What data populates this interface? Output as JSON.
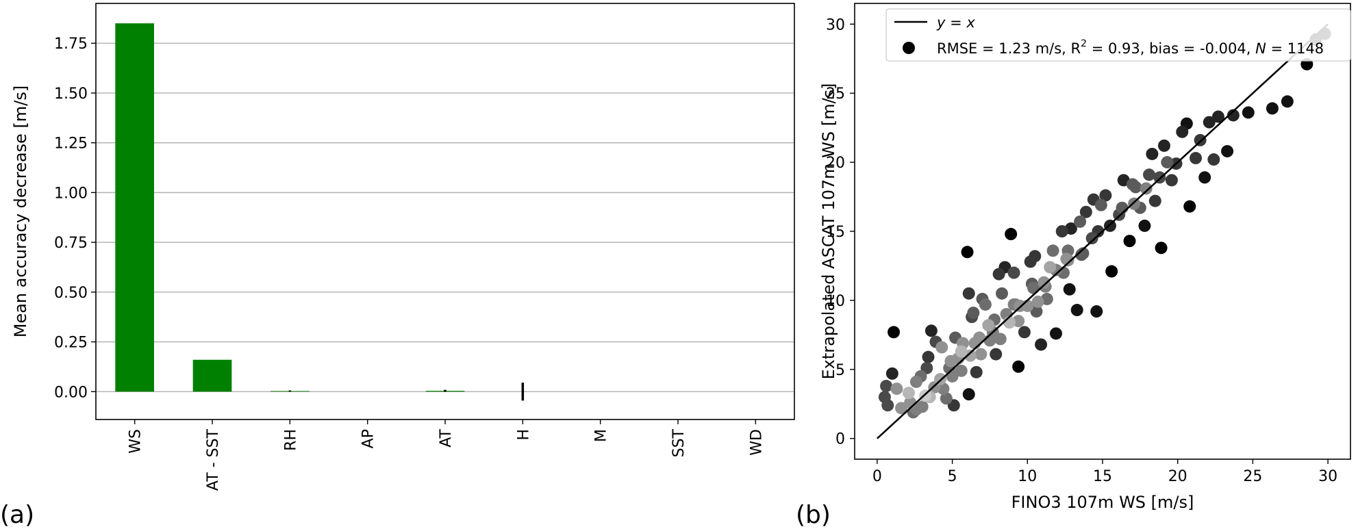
{
  "panels": {
    "a": {
      "label": "(a)"
    },
    "b": {
      "label": "(b)"
    }
  },
  "colors": {
    "bar": "#008000",
    "axis": "#000000",
    "grid": "#b0b0b0",
    "identity_line": "#000000"
  },
  "chart_data": [
    {
      "id": "importance",
      "type": "bar",
      "title": "",
      "xlabel": "",
      "ylabel": "Mean accuracy decrease [m/s]",
      "categories": [
        "WS",
        "AT - SST",
        "RH",
        "AP",
        "AT",
        "H",
        "M",
        "SST",
        "WD"
      ],
      "values": [
        1.85,
        0.16,
        0.003,
        0.0,
        0.004,
        0.0,
        0.0,
        0.0,
        0.0
      ],
      "error": [
        0.0,
        0.0,
        0.003,
        0.0,
        0.005,
        0.045,
        0.0,
        0.0,
        0.0
      ],
      "ylim": [
        -0.14,
        1.95
      ],
      "yticks": [
        "0.00",
        "0.25",
        "0.50",
        "0.75",
        "1.00",
        "1.25",
        "1.50",
        "1.75"
      ],
      "ytick_values": [
        0,
        0.25,
        0.5,
        0.75,
        1.0,
        1.25,
        1.5,
        1.75
      ],
      "grid": "horizontal",
      "xtick_rotation": "vertical"
    },
    {
      "id": "validation",
      "type": "scatter",
      "title": "",
      "xlabel": "FINO3 107m WS [m/s]",
      "ylabel": "Extrapolated ASCAT 107m WS [m/s]",
      "xlim": [
        -1.5,
        31.5
      ],
      "ylim": [
        -1.5,
        31.5
      ],
      "xticks": [
        "0",
        "5",
        "10",
        "15",
        "20",
        "25",
        "30"
      ],
      "xtick_values": [
        0,
        5,
        10,
        15,
        20,
        25,
        30
      ],
      "yticks": [
        "0",
        "5",
        "10",
        "15",
        "20",
        "25",
        "30"
      ],
      "ytick_values": [
        0,
        5,
        10,
        15,
        20,
        25,
        30
      ],
      "grid": false,
      "legend_position": "upper-left",
      "identity_line": {
        "label": "y = x",
        "from": [
          0,
          0
        ],
        "to": [
          30,
          30
        ]
      },
      "scatter_label": {
        "prefix": "RMSE = 1.23 m/s, R",
        "sup": "2",
        "mid": " = 0.93, bias = -0.004, ",
        "n_symbol": "N",
        "n_value": " = 1148"
      },
      "n_points": 1148,
      "density_colored": "grayscale (dark = sparse, light = dense)",
      "points": [
        [
          1.1,
          7.7
        ],
        [
          1.0,
          4.7
        ],
        [
          0.6,
          3.8
        ],
        [
          0.5,
          3.0
        ],
        [
          0.7,
          2.4
        ],
        [
          1.3,
          3.6
        ],
        [
          1.6,
          2.2
        ],
        [
          2.1,
          3.3
        ],
        [
          2.6,
          4.1
        ],
        [
          2.4,
          1.9
        ],
        [
          3.0,
          2.3
        ],
        [
          3.3,
          5.1
        ],
        [
          3.6,
          7.8
        ],
        [
          3.9,
          7.0
        ],
        [
          3.4,
          5.9
        ],
        [
          4.2,
          4.3
        ],
        [
          4.6,
          2.9
        ],
        [
          5.1,
          2.4
        ],
        [
          5.2,
          7.3
        ],
        [
          5.6,
          6.3
        ],
        [
          6.0,
          13.5
        ],
        [
          6.1,
          10.5
        ],
        [
          6.3,
          8.8
        ],
        [
          6.1,
          3.2
        ],
        [
          6.6,
          4.8
        ],
        [
          7.0,
          10.1
        ],
        [
          7.4,
          8.2
        ],
        [
          7.9,
          6.1
        ],
        [
          8.3,
          10.5
        ],
        [
          8.5,
          12.4
        ],
        [
          8.9,
          14.8
        ],
        [
          9.1,
          12.0
        ],
        [
          9.2,
          9.7
        ],
        [
          9.4,
          5.2
        ],
        [
          9.8,
          7.7
        ],
        [
          10.2,
          12.8
        ],
        [
          10.6,
          9.2
        ],
        [
          10.9,
          6.8
        ],
        [
          11.3,
          10.1
        ],
        [
          11.7,
          13.6
        ],
        [
          11.9,
          7.6
        ],
        [
          12.3,
          15.0
        ],
        [
          12.6,
          13.0
        ],
        [
          12.8,
          10.8
        ],
        [
          13.3,
          9.3
        ],
        [
          13.5,
          15.7
        ],
        [
          13.9,
          16.4
        ],
        [
          14.3,
          14.5
        ],
        [
          14.6,
          9.2
        ],
        [
          14.9,
          16.9
        ],
        [
          15.2,
          17.6
        ],
        [
          15.6,
          12.1
        ],
        [
          16.1,
          16.2
        ],
        [
          16.4,
          18.7
        ],
        [
          16.8,
          14.3
        ],
        [
          17.2,
          18.2
        ],
        [
          17.5,
          16.7
        ],
        [
          17.8,
          15.4
        ],
        [
          18.1,
          19.1
        ],
        [
          18.5,
          17.2
        ],
        [
          18.9,
          13.8
        ],
        [
          19.1,
          21.2
        ],
        [
          19.3,
          20.0
        ],
        [
          19.6,
          18.7
        ],
        [
          19.9,
          19.9
        ],
        [
          20.3,
          22.2
        ],
        [
          20.6,
          22.8
        ],
        [
          20.8,
          16.8
        ],
        [
          21.2,
          20.3
        ],
        [
          21.5,
          21.6
        ],
        [
          21.8,
          18.9
        ],
        [
          22.1,
          22.9
        ],
        [
          22.4,
          20.2
        ],
        [
          22.7,
          23.3
        ],
        [
          23.3,
          20.8
        ],
        [
          23.7,
          23.4
        ],
        [
          24.7,
          23.6
        ],
        [
          26.3,
          23.9
        ],
        [
          27.3,
          24.4
        ],
        [
          28.6,
          27.1
        ],
        [
          29.2,
          28.9
        ],
        [
          29.8,
          29.3
        ],
        [
          18.3,
          20.6
        ],
        [
          17.0,
          18.4
        ],
        [
          14.4,
          17.3
        ],
        [
          12.9,
          15.2
        ],
        [
          10.5,
          13.2
        ],
        [
          8.1,
          11.9
        ],
        [
          7.2,
          9.7
        ],
        [
          6.4,
          9.1
        ],
        [
          5.7,
          6.9
        ],
        [
          4.3,
          6.6
        ],
        [
          3.2,
          3.1
        ],
        [
          2.2,
          2.6
        ],
        [
          2.9,
          4.5
        ],
        [
          4.8,
          5.1
        ],
        [
          5.4,
          5.8
        ],
        [
          6.8,
          7.3
        ],
        [
          7.7,
          7.7
        ],
        [
          8.6,
          9.0
        ],
        [
          9.5,
          9.6
        ],
        [
          10.4,
          10.9
        ],
        [
          11.1,
          11.3
        ],
        [
          11.9,
          12.2
        ],
        [
          12.7,
          12.9
        ],
        [
          13.7,
          13.4
        ],
        [
          14.7,
          15.0
        ],
        [
          15.5,
          15.4
        ],
        [
          16.3,
          16.7
        ],
        [
          17.1,
          17.0
        ],
        [
          17.9,
          18.1
        ],
        [
          18.8,
          18.9
        ],
        [
          5.0,
          4.5
        ],
        [
          6.2,
          6.0
        ],
        [
          7.5,
          7.1
        ],
        [
          8.8,
          8.4
        ],
        [
          10.0,
          9.6
        ],
        [
          11.2,
          11.0
        ],
        [
          12.4,
          12.0
        ],
        [
          13.6,
          13.3
        ],
        [
          3.8,
          3.7
        ],
        [
          4.9,
          5.6
        ],
        [
          6.5,
          6.9
        ],
        [
          7.8,
          8.6
        ],
        [
          9.1,
          9.7
        ],
        [
          10.3,
          11.2
        ],
        [
          11.5,
          12.4
        ],
        [
          12.7,
          13.6
        ],
        [
          2.6,
          2.1
        ],
        [
          3.5,
          3.0
        ],
        [
          4.4,
          3.6
        ],
        [
          5.6,
          4.9
        ],
        [
          6.9,
          6.1
        ],
        [
          8.2,
          7.2
        ],
        [
          9.4,
          8.5
        ],
        [
          10.7,
          9.9
        ]
      ]
    }
  ]
}
